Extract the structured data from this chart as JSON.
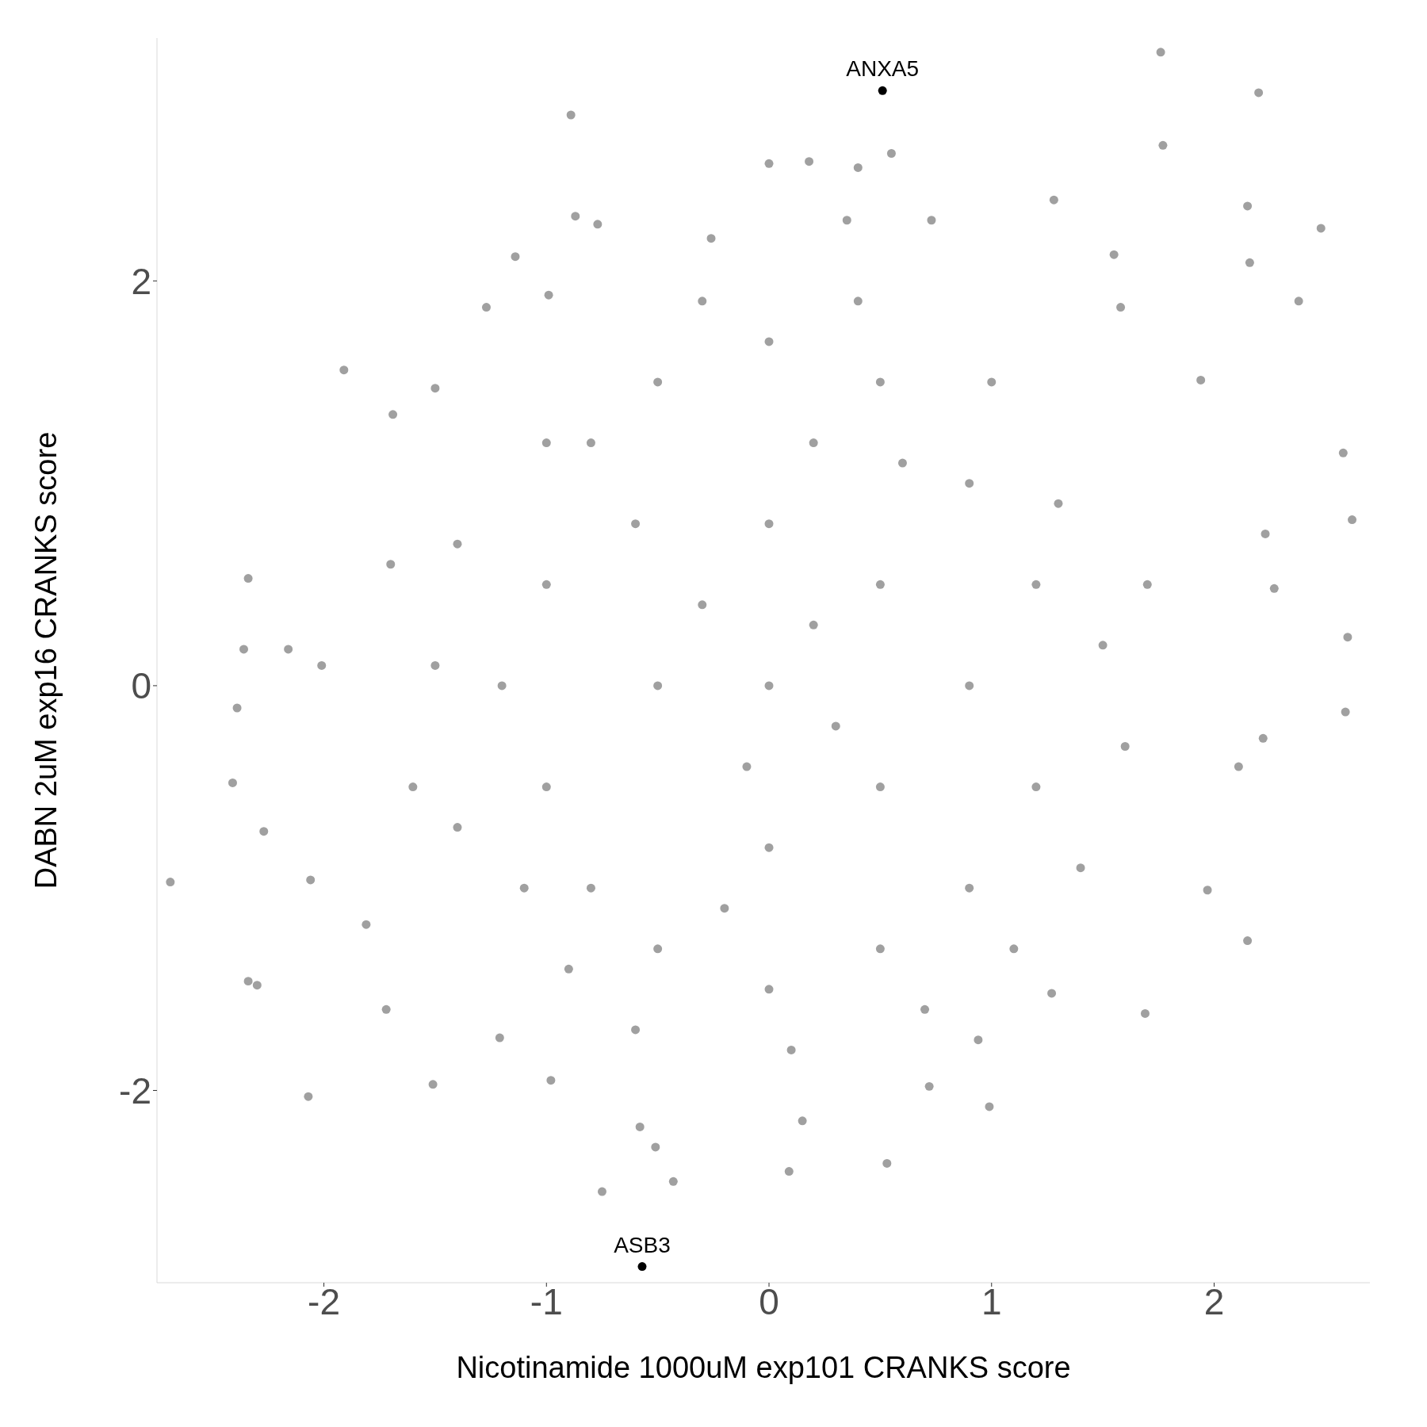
{
  "chart_data": {
    "type": "scatter",
    "xlabel": "Nicotinamide 1000uM exp101 CRANKS score",
    "ylabel": "DABN 2uM exp16 CRANKS score",
    "xlim": [
      -2.75,
      2.7
    ],
    "ylim": [
      -2.95,
      3.2
    ],
    "xticks": [
      -2,
      -1,
      0,
      1,
      2
    ],
    "yticks": [
      -2,
      0,
      2
    ],
    "grid": false,
    "marker": "circle",
    "series": [
      {
        "color": "#a0a0a0",
        "x": [
          1.76,
          2.2,
          1.77,
          -0.89,
          0,
          0.18,
          0.4,
          0.55,
          1.28,
          2.15,
          2.48,
          2.16,
          2.38,
          -0.87,
          -0.77,
          -1.14,
          0.35,
          0.73,
          -0.26,
          -0.99,
          -1.27,
          -1.91,
          -1.69,
          -1.5,
          2.58,
          2.62,
          2.23,
          2.27,
          2.6,
          2.59,
          2.22,
          2.11,
          2.15,
          1.69,
          0.99,
          0.53,
          0.09,
          0.15,
          -0.75,
          -0.43,
          -0.51,
          -1.51,
          -2.07,
          -2.34,
          -2.3,
          -2.69,
          -2.41,
          -2.27,
          -2.39,
          -2.34,
          -2.36,
          -2.16,
          -2.01,
          -2.06,
          -1.81,
          -1.72,
          -0.98,
          1.27,
          0.94,
          1.97,
          1.94,
          1.58,
          1.55,
          -0.58,
          0.72,
          -1.21,
          -1,
          -1,
          -0.8,
          -0.8,
          -0.5,
          -0.5,
          -0.5,
          0,
          0,
          0,
          0,
          0,
          0.5,
          0.5,
          0.5,
          0.5,
          0.9,
          0.9,
          0.9,
          1.2,
          1.2,
          -1.2,
          -0.3,
          0.3,
          0.2,
          -0.2,
          1,
          -1,
          -1.1,
          0.7,
          -0.6,
          1.3,
          1.4,
          -1.4,
          -1.4,
          1.5,
          -1.5,
          0.4,
          -0.3,
          0.1,
          1.1,
          -0.9,
          1.6,
          -1.6,
          1.7,
          -1.7,
          0.6,
          -0.6,
          0.2,
          -0.1
        ],
        "values": [
          3.13,
          2.93,
          2.67,
          2.82,
          2.58,
          2.59,
          2.56,
          2.63,
          2.4,
          2.37,
          2.26,
          2.09,
          1.9,
          2.32,
          2.28,
          2.12,
          2.3,
          2.3,
          2.21,
          1.93,
          1.87,
          1.56,
          1.34,
          1.47,
          1.15,
          0.82,
          0.75,
          0.48,
          0.24,
          -0.13,
          -0.26,
          -0.4,
          -1.26,
          -1.62,
          -2.08,
          -2.36,
          -2.4,
          -2.15,
          -2.5,
          -2.45,
          -2.28,
          -1.97,
          -2.03,
          -1.46,
          -1.48,
          -0.97,
          -0.48,
          -0.72,
          -0.11,
          0.53,
          0.18,
          0.18,
          0.1,
          -0.96,
          -1.18,
          -1.6,
          -1.95,
          -1.52,
          -1.75,
          -1.01,
          1.51,
          1.87,
          2.13,
          -2.18,
          -1.98,
          -1.74,
          0.5,
          -0.5,
          1.2,
          -1,
          1.5,
          0,
          -1.3,
          1.7,
          0.8,
          0,
          -0.8,
          -1.5,
          1.5,
          0.5,
          -0.5,
          -1.3,
          1,
          0,
          -1,
          0.5,
          -0.5,
          0,
          0.4,
          -0.2,
          1.2,
          -1.1,
          1.5,
          1.2,
          -1,
          -1.6,
          -1.7,
          0.9,
          -0.9,
          0.7,
          -0.7,
          0.2,
          0.1,
          1.9,
          1.9,
          -1.8,
          -1.3,
          -1.4,
          -0.3,
          -0.5,
          0.5,
          0.6,
          1.1,
          0.8,
          0.3,
          -0.4
        ]
      },
      {
        "color": "#000000",
        "x": [
          0.51,
          -0.57
        ],
        "values": [
          2.94,
          -2.87
        ]
      }
    ],
    "annotations": [
      {
        "text": "ANXA5",
        "x": 0.51,
        "y": 2.94
      },
      {
        "text": "ASB3",
        "x": -0.57,
        "y": -2.87
      }
    ]
  }
}
